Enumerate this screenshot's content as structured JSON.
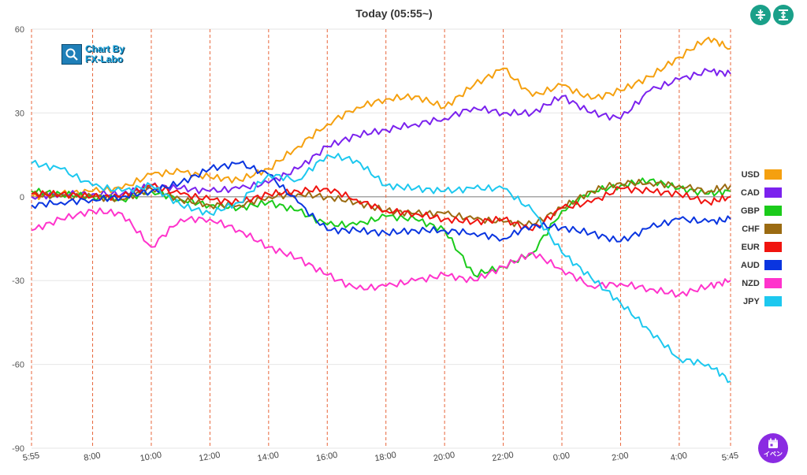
{
  "header": {
    "title": "Today  (05:55~)"
  },
  "top_buttons": [
    {
      "name": "fit-vertical-button",
      "icon": "split-vertical-icon"
    },
    {
      "name": "expand-vertical-button",
      "icon": "expand-vertical-icon"
    }
  ],
  "logo": {
    "line1": "Chart By",
    "line2": "FX-Labo"
  },
  "event_button": {
    "label": "イベン",
    "icon": "calendar-icon"
  },
  "chart_data": {
    "type": "line",
    "title": "Today  (05:55~)",
    "xlabel": "",
    "ylabel": "",
    "ylim": [
      -90,
      60
    ],
    "y_ticks": [
      "60",
      "30",
      "0",
      "-30",
      "-60",
      "-90"
    ],
    "y_tick_values": [
      60,
      30,
      0,
      -30,
      -60,
      -90
    ],
    "x_range": [
      0,
      1430
    ],
    "x_ticks": [
      {
        "label": "5:55",
        "x": 0
      },
      {
        "label": "8:00",
        "x": 125
      },
      {
        "label": "10:00",
        "x": 245
      },
      {
        "label": "12:00",
        "x": 365
      },
      {
        "label": "14:00",
        "x": 485
      },
      {
        "label": "16:00",
        "x": 605
      },
      {
        "label": "18:00",
        "x": 725
      },
      {
        "label": "20:00",
        "x": 845
      },
      {
        "label": "22:00",
        "x": 965
      },
      {
        "label": "0:00",
        "x": 1085
      },
      {
        "label": "2:00",
        "x": 1205
      },
      {
        "label": "4:00",
        "x": 1325
      },
      {
        "label": "5:45",
        "x": 1430
      }
    ],
    "grid": "horizontal solid, vertical dashed at ticks",
    "legend_position": "right",
    "sample_x": [
      0,
      60,
      125,
      185,
      245,
      305,
      365,
      425,
      485,
      545,
      605,
      665,
      725,
      785,
      845,
      905,
      965,
      1025,
      1085,
      1145,
      1205,
      1265,
      1325,
      1385,
      1430
    ],
    "series": [
      {
        "name": "USD",
        "color": "#f5a00f",
        "values": [
          0,
          1,
          2,
          3,
          8,
          9,
          7,
          6,
          10,
          18,
          26,
          32,
          35,
          36,
          32,
          40,
          46,
          36,
          40,
          35,
          38,
          43,
          50,
          57,
          53
        ]
      },
      {
        "name": "CAD",
        "color": "#7b22ee",
        "values": [
          0,
          1,
          1,
          1,
          4,
          3,
          2,
          3,
          5,
          10,
          18,
          22,
          24,
          26,
          28,
          32,
          30,
          30,
          36,
          30,
          28,
          38,
          42,
          45,
          44
        ]
      },
      {
        "name": "GBP",
        "color": "#1bcb1b",
        "values": [
          2,
          1,
          0,
          -1,
          2,
          -1,
          -3,
          -4,
          -2,
          -5,
          -10,
          -10,
          -7,
          -8,
          -12,
          -28,
          -25,
          -20,
          -5,
          2,
          4,
          6,
          3,
          1,
          2
        ]
      },
      {
        "name": "CHF",
        "color": "#9b6b12",
        "values": [
          1,
          0,
          0,
          -1,
          3,
          -1,
          -3,
          -3,
          0,
          1,
          0,
          -2,
          -5,
          -6,
          -6,
          -8,
          -9,
          -10,
          -4,
          2,
          5,
          5,
          4,
          2,
          4
        ]
      },
      {
        "name": "EUR",
        "color": "#f0140f",
        "values": [
          1,
          1,
          0,
          0,
          4,
          1,
          -1,
          -2,
          1,
          2,
          3,
          -1,
          -5,
          -6,
          -8,
          -9,
          -8,
          -12,
          -4,
          -2,
          3,
          2,
          1,
          -2,
          0
        ]
      },
      {
        "name": "AUD",
        "color": "#0a35e0",
        "values": [
          -3,
          -2,
          -1,
          0,
          2,
          5,
          10,
          12,
          8,
          -2,
          -12,
          -12,
          -13,
          -12,
          -12,
          -13,
          -15,
          -10,
          -11,
          -13,
          -16,
          -11,
          -8,
          -9,
          -8
        ]
      },
      {
        "name": "NZD",
        "color": "#ff33cc",
        "values": [
          -12,
          -8,
          -5,
          -6,
          -18,
          -8,
          -8,
          -12,
          -18,
          -22,
          -28,
          -33,
          -32,
          -30,
          -28,
          -30,
          -25,
          -20,
          -26,
          -32,
          -31,
          -33,
          -35,
          -32,
          -30
        ]
      },
      {
        "name": "JPY",
        "color": "#1dc8ef",
        "values": [
          12,
          10,
          4,
          2,
          4,
          -3,
          -6,
          -2,
          8,
          6,
          15,
          13,
          4,
          3,
          2,
          3,
          3,
          -5,
          -20,
          -29,
          -38,
          -48,
          -58,
          -60,
          -66
        ]
      }
    ]
  }
}
